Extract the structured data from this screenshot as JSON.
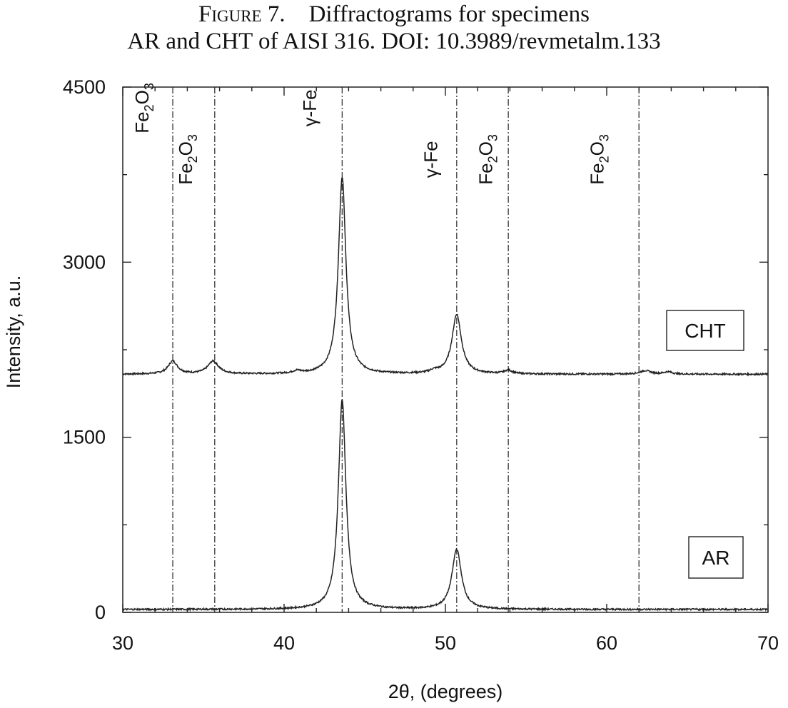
{
  "caption": {
    "label": "Figure 7.",
    "line1": "Diffractograms for specimens",
    "line2": "AR and CHT of AISI 316.  DOI: 10.3989/revmetalm.133"
  },
  "chart_data": {
    "type": "line",
    "title": "",
    "xlabel": "2θ, (degrees)",
    "ylabel": "Intensity, a.u.",
    "xlim": [
      30,
      70
    ],
    "ylim": [
      0,
      4500
    ],
    "xticks": [
      30,
      40,
      50,
      60,
      70
    ],
    "yticks": [
      0,
      1500,
      3000,
      4500
    ],
    "grid": false,
    "series": [
      {
        "name": "CHT",
        "baseline": 2040,
        "peaks": [
          {
            "x": 33.1,
            "height": 110,
            "width": 0.35
          },
          {
            "x": 35.6,
            "height": 110,
            "width": 0.4
          },
          {
            "x": 40.8,
            "height": 20,
            "width": 0.3
          },
          {
            "x": 43.6,
            "height": 1690,
            "width": 0.28
          },
          {
            "x": 49.3,
            "height": 20,
            "width": 0.3
          },
          {
            "x": 50.7,
            "height": 510,
            "width": 0.35
          },
          {
            "x": 53.9,
            "height": 30,
            "width": 0.3
          },
          {
            "x": 62.4,
            "height": 30,
            "width": 0.4
          },
          {
            "x": 63.8,
            "height": 20,
            "width": 0.3
          }
        ]
      },
      {
        "name": "AR",
        "baseline": 25,
        "peaks": [
          {
            "x": 43.6,
            "height": 1800,
            "width": 0.28
          },
          {
            "x": 50.7,
            "height": 515,
            "width": 0.35
          }
        ]
      }
    ],
    "reference_lines": [
      {
        "x": 33.1,
        "label": "Fe2O3"
      },
      {
        "x": 35.7,
        "label": "Fe2O3"
      },
      {
        "x": 43.6,
        "label": "γ-Fe"
      },
      {
        "x": 50.7,
        "label": "γ-Fe"
      },
      {
        "x": 53.9,
        "label": "Fe2O3"
      },
      {
        "x": 62.0,
        "label": "Fe2O3"
      }
    ],
    "peak_labels": [
      {
        "x": 31.6,
        "y": 4320,
        "label": "Fe2O3"
      },
      {
        "x": 34.3,
        "y": 3880,
        "label": "Fe2O3"
      },
      {
        "x": 42.0,
        "y": 4320,
        "label": "γ-Fe"
      },
      {
        "x": 49.5,
        "y": 3880,
        "label": "γ-Fe"
      },
      {
        "x": 52.9,
        "y": 3880,
        "label": "Fe2O3"
      },
      {
        "x": 59.8,
        "y": 3880,
        "label": "Fe2O3"
      }
    ],
    "series_boxes": [
      {
        "label": "CHT"
      },
      {
        "label": "AR"
      }
    ]
  }
}
